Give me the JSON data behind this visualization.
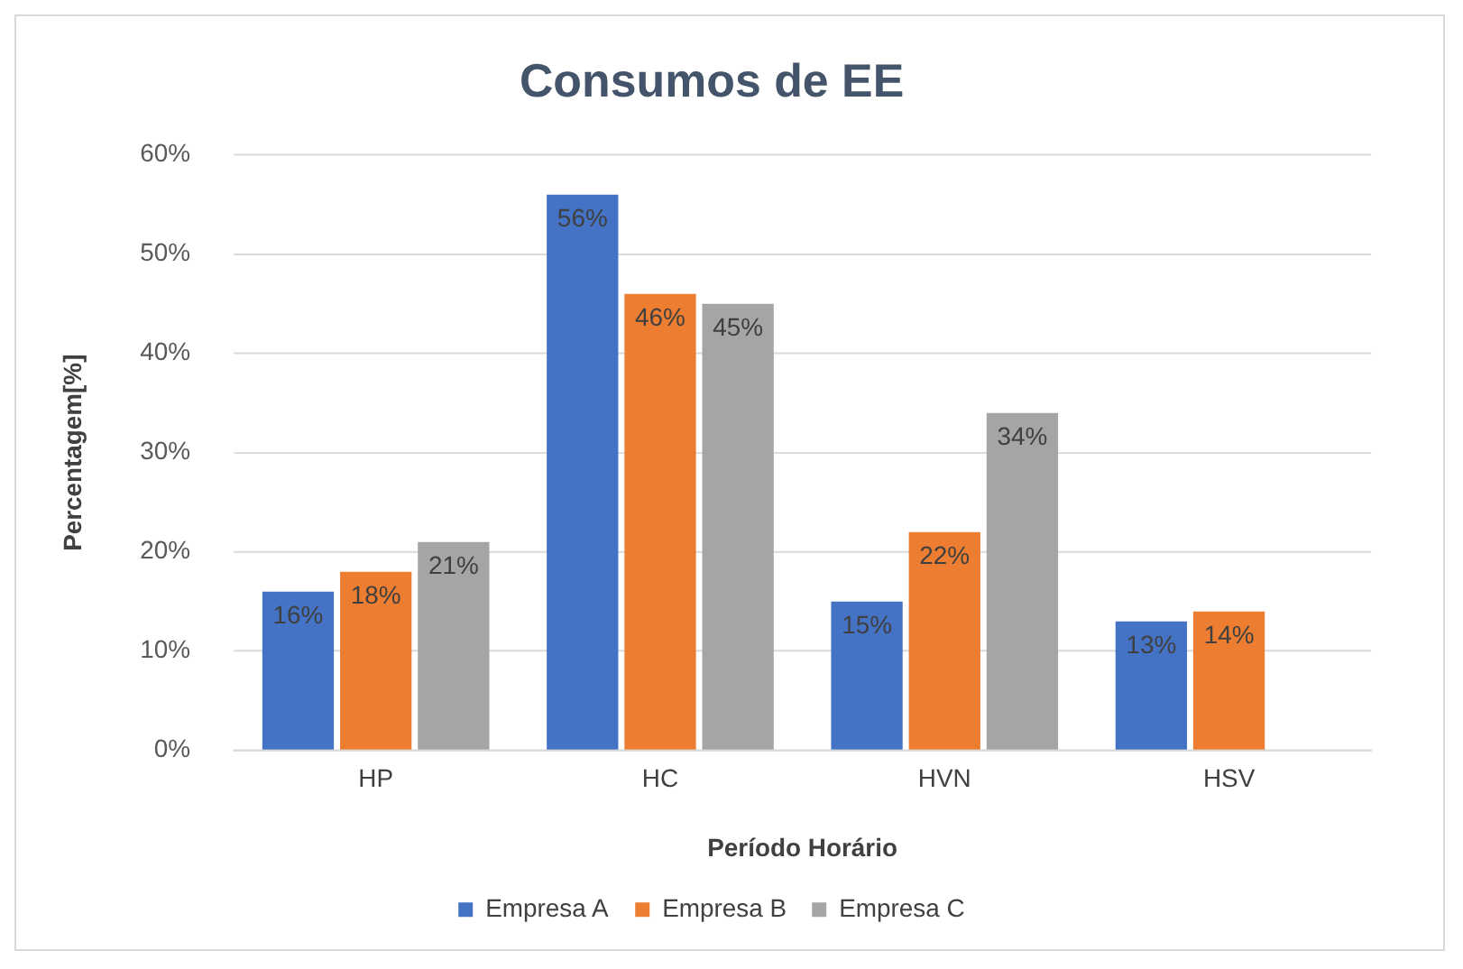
{
  "chart_data": {
    "type": "bar",
    "title": "Consumos de EE",
    "xlabel": "Período Horário",
    "ylabel": "Percentagem[%]",
    "categories": [
      "HP",
      "HC",
      "HVN",
      "HSV"
    ],
    "series": [
      {
        "name": "Empresa A",
        "color": "#4472c4",
        "values": [
          16,
          56,
          15,
          13
        ],
        "value_labels": [
          "16%",
          "56%",
          "15%",
          "13%"
        ]
      },
      {
        "name": "Empresa B",
        "color": "#ed7d31",
        "values": [
          18,
          46,
          22,
          14
        ],
        "value_labels": [
          "18%",
          "46%",
          "22%",
          "14%"
        ]
      },
      {
        "name": "Empresa C",
        "color": "#a5a5a5",
        "values": [
          21,
          45,
          34,
          null
        ],
        "value_labels": [
          "21%",
          "45%",
          "34%",
          null
        ]
      }
    ],
    "ylim": [
      0,
      60
    ],
    "yticks": [
      {
        "value": 0,
        "label": "0%"
      },
      {
        "value": 10,
        "label": "10%"
      },
      {
        "value": 20,
        "label": "20%"
      },
      {
        "value": 30,
        "label": "30%"
      },
      {
        "value": 40,
        "label": "40%"
      },
      {
        "value": 50,
        "label": "50%"
      },
      {
        "value": 60,
        "label": "60%"
      }
    ],
    "grid": "y",
    "legend": "bottom"
  }
}
